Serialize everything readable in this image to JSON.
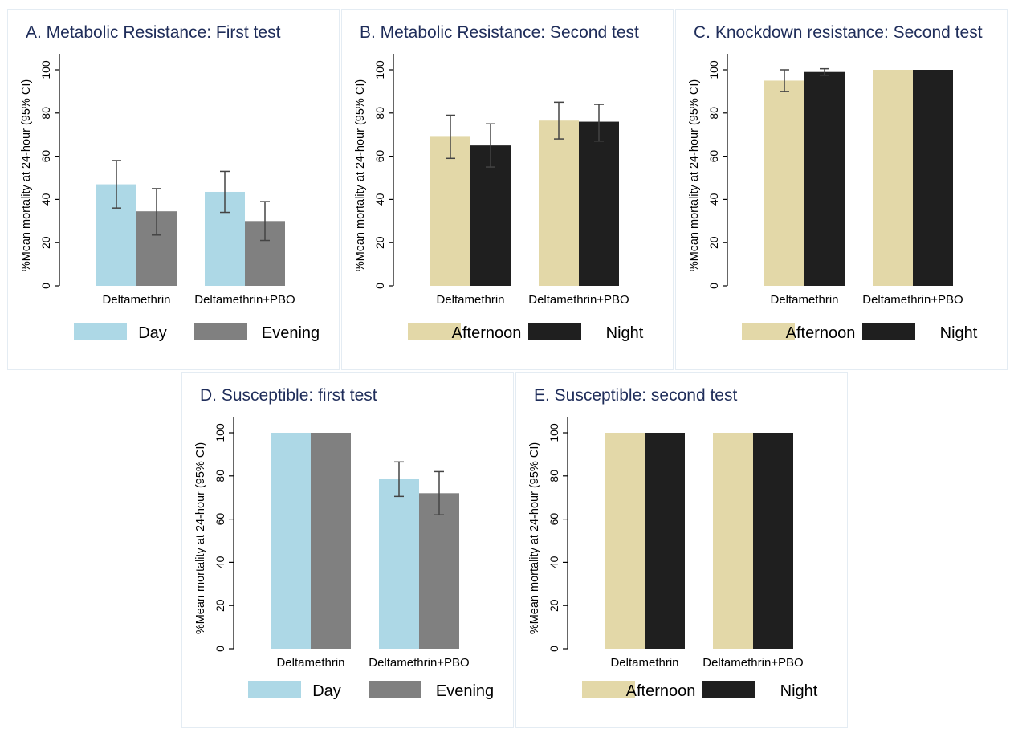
{
  "colors": {
    "day": "#add8e6",
    "evening": "#808080",
    "afternoon": "#e3d8a8",
    "night": "#1f1f1f",
    "title": "#1f2d5a"
  },
  "chart_data": [
    {
      "type": "bar",
      "title": "A. Metabolic Resistance: First test",
      "ylabel": "%Mean mortality at 24-hour (95% CI)",
      "ylim": [
        0,
        100
      ],
      "yticks": [
        0,
        20,
        40,
        60,
        80,
        100
      ],
      "categories": [
        "Deltamethrin",
        "Deltamethrin+PBO"
      ],
      "series": [
        {
          "name": "Day",
          "color": "#add8e6",
          "values": [
            47,
            43.5
          ],
          "ci_low": [
            36,
            34
          ],
          "ci_high": [
            58,
            53
          ]
        },
        {
          "name": "Evening",
          "color": "#808080",
          "values": [
            34.5,
            30
          ],
          "ci_low": [
            23.5,
            21
          ],
          "ci_high": [
            45,
            39
          ]
        }
      ],
      "legend": "bottom"
    },
    {
      "type": "bar",
      "title": "B. Metabolic Resistance: Second test",
      "ylabel": "%Mean mortality at 24-hour (95% CI)",
      "ylim": [
        0,
        100
      ],
      "yticks": [
        0,
        20,
        40,
        60,
        80,
        100
      ],
      "categories": [
        "Deltamethrin",
        "Deltamethrin+PBO"
      ],
      "series": [
        {
          "name": "Afternoon",
          "color": "#e3d8a8",
          "values": [
            69,
            76.5
          ],
          "ci_low": [
            59,
            68
          ],
          "ci_high": [
            79,
            85
          ]
        },
        {
          "name": "Night",
          "color": "#1f1f1f",
          "values": [
            65,
            76
          ],
          "ci_low": [
            55,
            67
          ],
          "ci_high": [
            75,
            84
          ]
        }
      ],
      "legend": "bottom"
    },
    {
      "type": "bar",
      "title": "C. Knockdown resistance: Second test",
      "ylabel": "%Mean mortality at 24-hour (95% CI)",
      "ylim": [
        0,
        100
      ],
      "yticks": [
        0,
        20,
        40,
        60,
        80,
        100
      ],
      "categories": [
        "Deltamethrin",
        "Deltamethrin+PBO"
      ],
      "series": [
        {
          "name": "Afternoon",
          "color": "#e3d8a8",
          "values": [
            95,
            100
          ],
          "ci_low": [
            90,
            null
          ],
          "ci_high": [
            100,
            null
          ]
        },
        {
          "name": "Night",
          "color": "#1f1f1f",
          "values": [
            99,
            100
          ],
          "ci_low": [
            97.5,
            null
          ],
          "ci_high": [
            100.5,
            null
          ]
        }
      ],
      "legend": "bottom"
    },
    {
      "type": "bar",
      "title": "D. Susceptible: first test",
      "ylabel": "%Mean mortality at 24-hour (95% CI)",
      "ylim": [
        0,
        100
      ],
      "yticks": [
        0,
        20,
        40,
        60,
        80,
        100
      ],
      "categories": [
        "Deltamethrin",
        "Deltamethrin+PBO"
      ],
      "series": [
        {
          "name": "Day",
          "color": "#add8e6",
          "values": [
            100,
            78.5
          ],
          "ci_low": [
            null,
            70.5
          ],
          "ci_high": [
            null,
            86.5
          ]
        },
        {
          "name": "Evening",
          "color": "#808080",
          "values": [
            100,
            72
          ],
          "ci_low": [
            null,
            62
          ],
          "ci_high": [
            null,
            82
          ]
        }
      ],
      "legend": "bottom"
    },
    {
      "type": "bar",
      "title": "E. Susceptible: second test",
      "ylabel": "%Mean mortality at 24-hour (95% CI)",
      "ylim": [
        0,
        100
      ],
      "yticks": [
        0,
        20,
        40,
        60,
        80,
        100
      ],
      "categories": [
        "Deltamethrin",
        "Deltamethrin+PBO"
      ],
      "series": [
        {
          "name": "Afternoon",
          "color": "#e3d8a8",
          "values": [
            100,
            100
          ],
          "ci_low": [
            null,
            null
          ],
          "ci_high": [
            null,
            null
          ]
        },
        {
          "name": "Night",
          "color": "#1f1f1f",
          "values": [
            100,
            100
          ],
          "ci_low": [
            null,
            null
          ],
          "ci_high": [
            null,
            null
          ]
        }
      ],
      "legend": "bottom"
    }
  ]
}
